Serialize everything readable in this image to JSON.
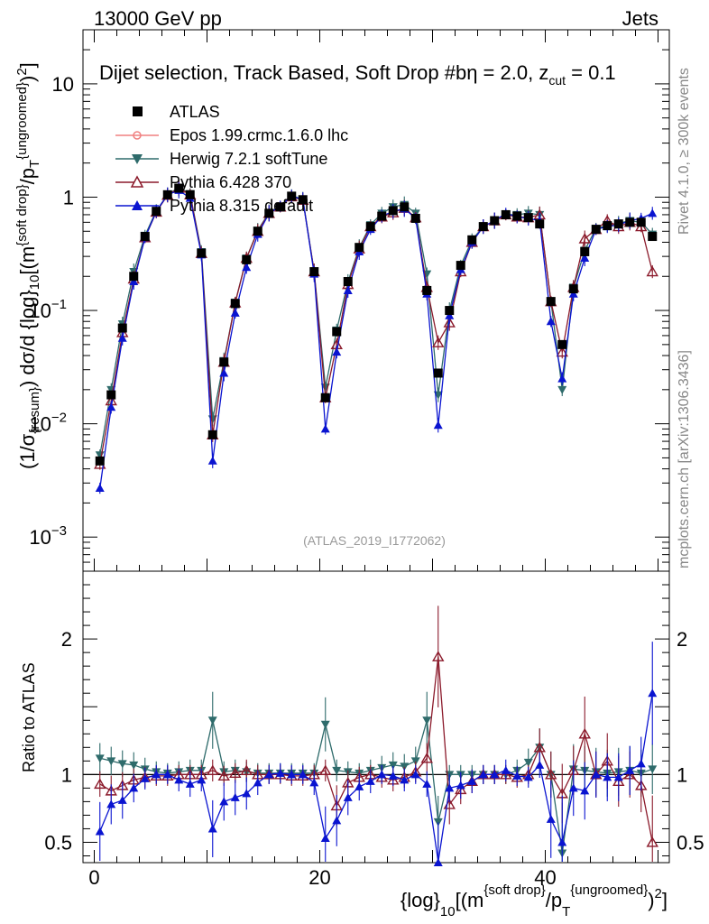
{
  "header": {
    "left": "13000 GeV pp",
    "right": "Jets"
  },
  "side_labels": {
    "rivet": "Rivet 4.1.0, ≥ 300k events",
    "site": "mcplots.cern.ch [arXiv:1306.3436]"
  },
  "watermark": "(ATLAS_2019_I1772062)",
  "chart_data": {
    "type": "line",
    "title": "Dijet selection, Track Based, Soft Drop #bη = 2.0, z_cut = 0.1",
    "title_parts": {
      "main": "Dijet selection, Track Based, Soft Drop #b",
      "beta": "η = 2.0, z",
      "sub": "cut",
      "tail": " = 0.1"
    },
    "xlabel": "{log}_10[(m^{soft drop}/p_T^{ungroomed})^2]",
    "xlabel_parts": {
      "a": "{log}",
      "b": "10",
      "c": "[(m",
      "d": "{soft drop}",
      "e": "/p",
      "f": "T",
      "g": "{ungroomed}",
      "h": ")",
      "i": "2",
      "j": "]"
    },
    "ylabel": "(1/σ_{resum}) dσ/d {log}_10[(m^{soft drop}/p_T^{ungroomed})^2]",
    "ylabel_parts": {
      "a": "(1/σ",
      "b": "{resum}",
      "c": ") dσ/d {log}",
      "d": "10",
      "e": "[(m",
      "f": "{soft drop}",
      "g": "/p",
      "h": "T",
      "i": "{ungroomed}",
      "j": ")",
      "k": "2",
      "l": "]"
    },
    "ratio_ylabel": "Ratio to ATLAS",
    "xlim": [
      -1,
      51
    ],
    "ylim": [
      0.0005,
      30
    ],
    "ratio_ylim": [
      0.35,
      2.5
    ],
    "x_ticks": [
      "0",
      "20",
      "40"
    ],
    "y_ticks": [
      "10",
      "1",
      "10^-1",
      "10^-2",
      "10^-3"
    ],
    "ratio_ticks": [
      "2",
      "1.5",
      "1",
      "0.5"
    ],
    "ratio_tick_labels": [
      "2",
      "1",
      "0.5"
    ],
    "legend": [
      "ATLAS",
      "Epos 1.99.crmc.1.6.0 lhc",
      "Herwig 7.2.1 softTune",
      "Pythia 6.428 370",
      "Pythia 8.315 default"
    ],
    "x": [
      0.5,
      1.5,
      2.5,
      3.5,
      4.5,
      5.5,
      6.5,
      7.5,
      8.5,
      9.5,
      10.5,
      11.5,
      12.5,
      13.5,
      14.5,
      15.5,
      16.5,
      17.5,
      18.5,
      19.5,
      20.5,
      21.5,
      22.5,
      23.5,
      24.5,
      25.5,
      26.5,
      27.5,
      28.5,
      29.5,
      30.5,
      31.5,
      32.5,
      33.5,
      34.5,
      35.5,
      36.5,
      37.5,
      38.5,
      39.5,
      40.5,
      41.5,
      42.5,
      43.5,
      44.5,
      45.5,
      46.5,
      47.5,
      48.5,
      49.5
    ],
    "series": [
      {
        "name": "ATLAS",
        "color": "#000000",
        "marker": "square",
        "values": [
          0.0047,
          0.018,
          0.07,
          0.2,
          0.45,
          0.75,
          1.05,
          1.2,
          1.05,
          0.32,
          0.008,
          0.035,
          0.115,
          0.28,
          0.5,
          0.72,
          0.82,
          1.02,
          0.95,
          0.22,
          0.017,
          0.065,
          0.18,
          0.36,
          0.55,
          0.68,
          0.76,
          0.82,
          0.65,
          0.15,
          0.028,
          0.1,
          0.25,
          0.42,
          0.55,
          0.62,
          0.7,
          0.68,
          0.66,
          0.58,
          0.12,
          0.05,
          0.155,
          0.33,
          0.52,
          0.56,
          0.58,
          0.6,
          0.6,
          0.45
        ]
      },
      {
        "name": "Herwig 7.2.1 softTune",
        "color": "#2E6B6B",
        "marker": "triangle-down",
        "values": [
          0.0053,
          0.02,
          0.076,
          0.22,
          0.46,
          0.76,
          1.05,
          1.22,
          1.07,
          0.33,
          0.011,
          0.036,
          0.118,
          0.29,
          0.51,
          0.73,
          0.83,
          1.03,
          0.96,
          0.22,
          0.021,
          0.067,
          0.18,
          0.36,
          0.57,
          0.72,
          0.82,
          0.86,
          0.72,
          0.21,
          0.018,
          0.1,
          0.25,
          0.42,
          0.55,
          0.62,
          0.7,
          0.7,
          0.72,
          0.7,
          0.12,
          0.02,
          0.16,
          0.34,
          0.53,
          0.56,
          0.59,
          0.62,
          0.6,
          0.47
        ]
      },
      {
        "name": "Pythia 6.428 370",
        "color": "#8B1A2B",
        "marker": "triangle-open",
        "values": [
          0.0044,
          0.016,
          0.064,
          0.19,
          0.44,
          0.74,
          1.04,
          1.2,
          1.05,
          0.32,
          0.008,
          0.035,
          0.117,
          0.29,
          0.5,
          0.72,
          0.82,
          1.01,
          0.94,
          0.22,
          0.017,
          0.05,
          0.17,
          0.35,
          0.55,
          0.67,
          0.73,
          0.8,
          0.66,
          0.16,
          0.052,
          0.078,
          0.22,
          0.4,
          0.55,
          0.62,
          0.7,
          0.67,
          0.66,
          0.7,
          0.12,
          0.043,
          0.16,
          0.43,
          0.52,
          0.62,
          0.55,
          0.6,
          0.55,
          0.22
        ]
      },
      {
        "name": "Pythia 8.315 default",
        "color": "#0A14D0",
        "marker": "triangle-up",
        "values": [
          0.0027,
          0.014,
          0.057,
          0.18,
          0.44,
          0.75,
          1.05,
          1.15,
          0.98,
          0.31,
          0.0047,
          0.028,
          0.095,
          0.24,
          0.47,
          0.72,
          0.83,
          1.02,
          0.95,
          0.21,
          0.009,
          0.043,
          0.15,
          0.33,
          0.52,
          0.68,
          0.75,
          0.79,
          0.65,
          0.14,
          0.0097,
          0.09,
          0.23,
          0.4,
          0.55,
          0.62,
          0.72,
          0.67,
          0.65,
          0.62,
          0.08,
          0.025,
          0.14,
          0.29,
          0.52,
          0.55,
          0.57,
          0.62,
          0.65,
          0.72
        ]
      }
    ],
    "ratios": [
      {
        "name": "Herwig 7.2.1 softTune",
        "color": "#2E6B6B",
        "marker": "triangle-down",
        "values": [
          1.12,
          1.1,
          1.08,
          1.07,
          1.04,
          1.02,
          1.01,
          1.02,
          1.03,
          1.03,
          1.4,
          1.02,
          1.03,
          1.02,
          1.01,
          1.01,
          1.01,
          1.01,
          1.01,
          1.01,
          1.37,
          1.03,
          1.02,
          1.01,
          1.03,
          1.05,
          1.07,
          1.06,
          1.1,
          1.4,
          0.65,
          1.0,
          1.0,
          1.0,
          1.0,
          1.0,
          1.0,
          1.03,
          1.09,
          1.2,
          1.0,
          0.42,
          1.04,
          1.03,
          1.02,
          1.01,
          1.02,
          1.03,
          1.01,
          1.04
        ]
      },
      {
        "name": "Pythia 6.428 370",
        "color": "#8B1A2B",
        "marker": "triangle-open",
        "values": [
          0.93,
          0.88,
          0.92,
          0.96,
          0.98,
          0.99,
          0.99,
          1.0,
          1.0,
          1.0,
          1.03,
          0.99,
          1.01,
          1.03,
          1.0,
          1.0,
          1.0,
          0.99,
          0.99,
          1.0,
          1.03,
          0.77,
          0.94,
          0.98,
          1.0,
          0.98,
          0.96,
          0.98,
          1.02,
          1.12,
          1.87,
          0.78,
          0.89,
          0.95,
          1.0,
          1.0,
          1.0,
          0.98,
          1.0,
          1.2,
          1.0,
          0.86,
          1.03,
          1.3,
          1.0,
          1.1,
          0.95,
          1.0,
          0.92,
          0.5
        ]
      },
      {
        "name": "Pythia 8.315 default",
        "color": "#0A14D0",
        "marker": "triangle-up",
        "values": [
          0.58,
          0.78,
          0.81,
          0.9,
          0.97,
          1.0,
          1.0,
          0.96,
          0.93,
          0.96,
          0.6,
          0.8,
          0.83,
          0.86,
          0.94,
          1.0,
          1.01,
          1.0,
          1.0,
          0.94,
          0.53,
          0.66,
          0.83,
          0.91,
          0.95,
          1.0,
          0.99,
          0.96,
          1.0,
          0.93,
          0.35,
          0.9,
          0.92,
          0.95,
          1.0,
          1.0,
          1.03,
          0.99,
          0.98,
          1.07,
          0.67,
          0.5,
          0.9,
          0.88,
          1.0,
          0.98,
          0.98,
          1.03,
          1.08,
          1.6
        ]
      }
    ]
  }
}
